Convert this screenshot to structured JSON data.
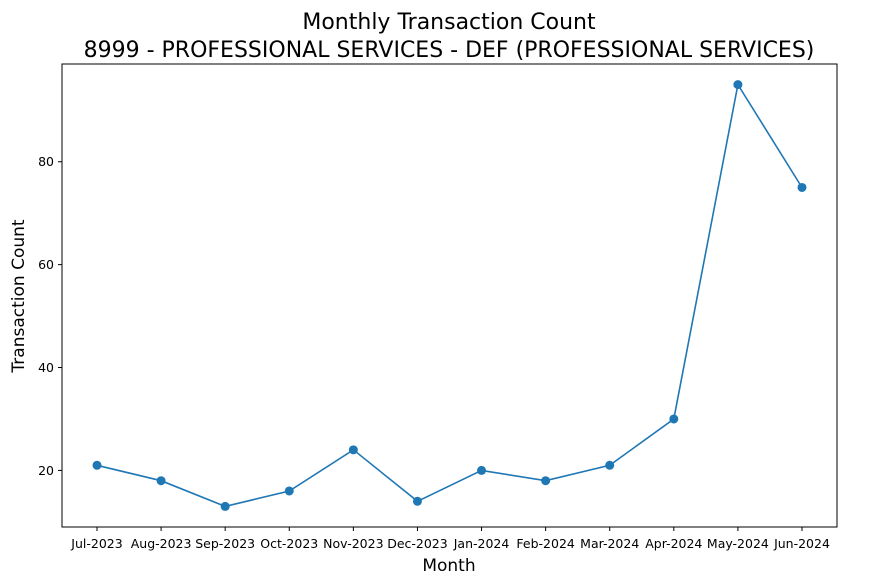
{
  "chart_data": {
    "type": "line",
    "title": "Monthly Transaction Count",
    "subtitle": "8999 - PROFESSIONAL SERVICES - DEF (PROFESSIONAL SERVICES)",
    "xlabel": "Month",
    "ylabel": "Transaction Count",
    "categories": [
      "Jul-2023",
      "Aug-2023",
      "Sep-2023",
      "Oct-2023",
      "Nov-2023",
      "Dec-2023",
      "Jan-2024",
      "Feb-2024",
      "Mar-2024",
      "Apr-2024",
      "May-2024",
      "Jun-2024"
    ],
    "series": [
      {
        "values": [
          21,
          18,
          13,
          16,
          24,
          14,
          20,
          18,
          21,
          30,
          95,
          75
        ]
      }
    ],
    "ylim": [
      9,
      99
    ],
    "yticks": [
      20,
      40,
      60,
      80
    ],
    "grid": false,
    "legend": "none",
    "marker": "circle",
    "color": "#1f77b4"
  }
}
